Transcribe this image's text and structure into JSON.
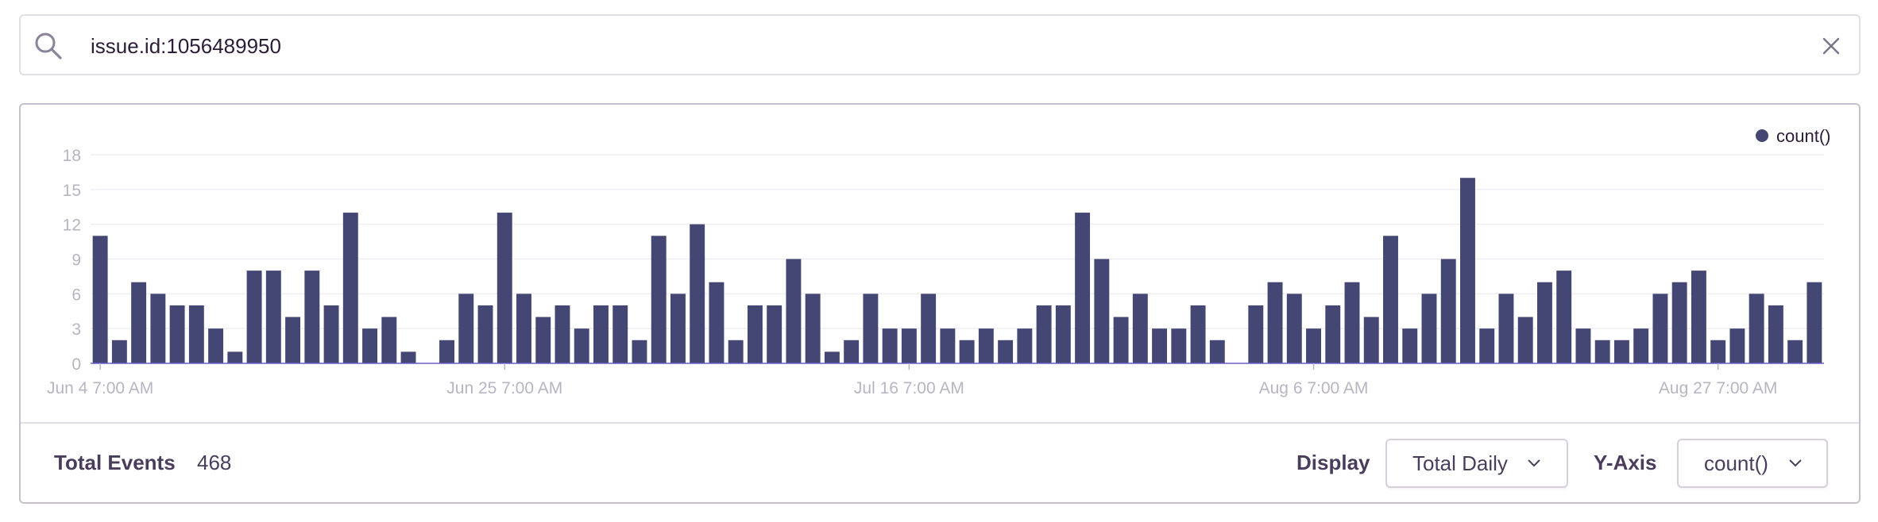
{
  "search": {
    "value": "issue.id:1056489950"
  },
  "chart_data": {
    "type": "bar",
    "title": "",
    "xlabel": "",
    "ylabel": "",
    "ylim": [
      0,
      18
    ],
    "yticks": [
      "0",
      "3",
      "6",
      "9",
      "12",
      "15",
      "18"
    ],
    "x_tick_labels": [
      "Jun 4 7:00 AM",
      "Jun 25 7:00 AM",
      "Jul 16 7:00 AM",
      "Aug 6 7:00 AM",
      "Aug 27 7:00 AM"
    ],
    "x_tick_indices": [
      0,
      21,
      42,
      63,
      84
    ],
    "legend": [
      "count()"
    ],
    "legend_position": "top-right",
    "series": [
      {
        "name": "count()",
        "color": "#444674",
        "values": [
          11,
          2,
          7,
          6,
          5,
          5,
          3,
          1,
          8,
          8,
          4,
          8,
          5,
          13,
          3,
          4,
          1,
          0,
          2,
          6,
          5,
          13,
          6,
          4,
          5,
          3,
          5,
          5,
          2,
          11,
          6,
          12,
          7,
          2,
          5,
          5,
          9,
          6,
          1,
          2,
          6,
          3,
          3,
          6,
          3,
          2,
          3,
          2,
          3,
          5,
          5,
          13,
          9,
          4,
          6,
          3,
          3,
          5,
          2,
          0,
          5,
          7,
          6,
          3,
          5,
          7,
          4,
          11,
          3,
          6,
          9,
          16,
          3,
          6,
          4,
          7,
          8,
          3,
          2,
          2,
          3,
          6,
          7,
          8,
          2,
          3,
          6,
          5,
          2,
          7
        ]
      }
    ]
  },
  "footer": {
    "total_label": "Total Events",
    "total_value": "468",
    "display_label": "Display",
    "display_value": "Total Daily",
    "yaxis_label": "Y-Axis",
    "yaxis_value": "count()"
  },
  "colors": {
    "bar": "#444674",
    "axis_text": "#b9b4c2",
    "grid": "#f0eef3"
  }
}
